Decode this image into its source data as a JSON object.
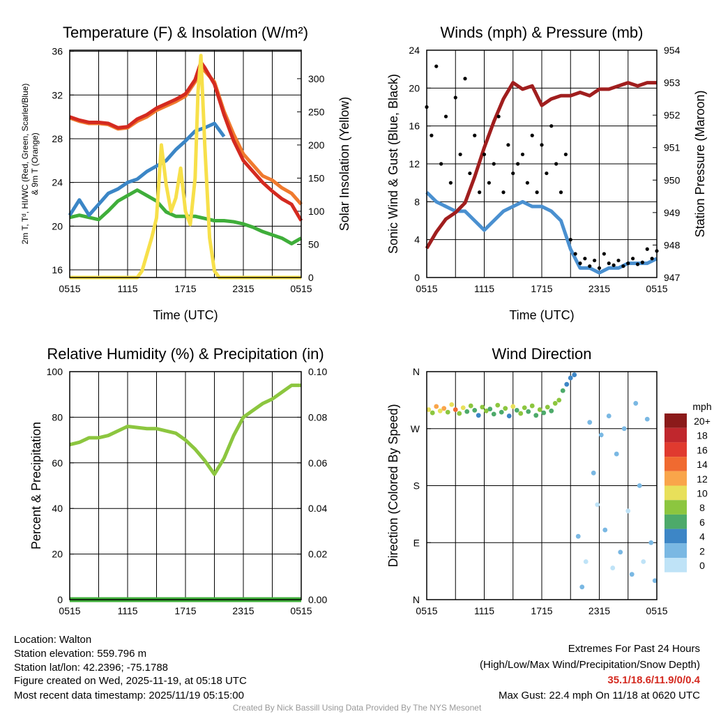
{
  "chart_data": [
    {
      "id": "temp",
      "type": "line",
      "title": "Temperature (F) & Insolation (W/m²)",
      "xlabel": "Time (UTC)",
      "ylabel": "2m T, Tᵈ, HI/WC (Red, Green, Scarlet/Blue)",
      "ylabel2": "& 9m T (Orange)",
      "y2label": "Solar Insolation (Yellow)",
      "xlim": [
        0,
        24
      ],
      "ylim": [
        15.3,
        36.1
      ],
      "y2lim": [
        0,
        343
      ],
      "x_ticks": [
        {
          "v": 0,
          "l": "0515"
        },
        {
          "v": 6,
          "l": "1115"
        },
        {
          "v": 12,
          "l": "1715"
        },
        {
          "v": 18,
          "l": "2315"
        },
        {
          "v": 24,
          "l": "0515"
        }
      ],
      "y_ticks": [
        16,
        20,
        24,
        28,
        32,
        36
      ],
      "y2_ticks": [
        0,
        50,
        100,
        150,
        200,
        250,
        300
      ],
      "series": [
        {
          "name": "9m T",
          "color": "#f07a2e",
          "axis": "left",
          "x": [
            0,
            1,
            2,
            3,
            4,
            5,
            6,
            7,
            8,
            9,
            10,
            11,
            12,
            13,
            13.6,
            14,
            15,
            16,
            17,
            18,
            19,
            20,
            21,
            22,
            23,
            24
          ],
          "y": [
            29.9,
            29.6,
            29.4,
            29.4,
            29.3,
            28.9,
            29.0,
            29.6,
            30.0,
            30.6,
            31.0,
            31.4,
            31.9,
            33.2,
            34.6,
            34.2,
            33.2,
            30.5,
            28.4,
            26.6,
            25.6,
            24.6,
            24.2,
            23.5,
            23.0,
            22.0
          ]
        },
        {
          "name": "2m T",
          "color": "#d42a20",
          "axis": "left",
          "x": [
            0,
            1,
            2,
            3,
            4,
            5,
            6,
            7,
            8,
            9,
            10,
            11,
            12,
            13,
            13.6,
            14,
            15,
            16,
            17,
            18,
            19,
            20,
            21,
            22,
            23,
            24
          ],
          "y": [
            30.0,
            29.7,
            29.5,
            29.5,
            29.4,
            29.0,
            29.1,
            29.8,
            30.2,
            30.8,
            31.2,
            31.6,
            32.1,
            33.4,
            35.0,
            34.5,
            33.0,
            30.2,
            27.8,
            26.0,
            25.0,
            24.0,
            23.2,
            22.5,
            22.0,
            20.5
          ]
        },
        {
          "name": "Td",
          "color": "#3fae3a",
          "axis": "left",
          "x": [
            0,
            1,
            2,
            3,
            4,
            5,
            6,
            7,
            8,
            9,
            10,
            11,
            12,
            13,
            14,
            15,
            16,
            17,
            18,
            19,
            20,
            21,
            22,
            23,
            24
          ],
          "y": [
            20.8,
            21.0,
            20.8,
            20.6,
            21.4,
            22.3,
            22.8,
            23.3,
            22.8,
            22.3,
            21.3,
            20.9,
            20.9,
            20.9,
            20.7,
            20.5,
            20.5,
            20.4,
            20.2,
            19.9,
            19.5,
            19.2,
            18.9,
            18.4,
            18.9
          ]
        },
        {
          "name": "HI/WC",
          "color": "#3b86c6",
          "axis": "left",
          "x": [
            0,
            1,
            2,
            3,
            4,
            5,
            6,
            7,
            8,
            9,
            10,
            11,
            12,
            13,
            14,
            15,
            16
          ],
          "y": [
            21.0,
            22.4,
            21.0,
            22.0,
            23.0,
            23.4,
            24.0,
            24.3,
            25.0,
            25.5,
            26.0,
            27.0,
            27.8,
            28.7,
            29.0,
            29.4,
            28.2
          ]
        },
        {
          "name": "Solar",
          "color": "#f7e04a",
          "axis": "right",
          "x": [
            0,
            7,
            7.5,
            8,
            8.5,
            9,
            9.5,
            10,
            10.5,
            11,
            11.5,
            12,
            12.5,
            13,
            13.3,
            13.6,
            14,
            14.5,
            15,
            15.5,
            24
          ],
          "y": [
            0,
            0,
            10,
            35,
            60,
            90,
            200,
            140,
            100,
            120,
            165,
            100,
            80,
            150,
            280,
            335,
            200,
            60,
            10,
            0,
            0
          ]
        }
      ]
    },
    {
      "id": "wind",
      "type": "line",
      "title": "Winds (mph) & Pressure (mb)",
      "xlabel": "Time (UTC)",
      "ylabel": "Sonic Wind & Gust (Blue, Black)",
      "y2label": "Station Pressure (Maroon)",
      "xlim": [
        0,
        24
      ],
      "ylim": [
        0,
        24
      ],
      "y2lim": [
        947,
        954
      ],
      "x_ticks": [
        {
          "v": 0,
          "l": "0515"
        },
        {
          "v": 6,
          "l": "1115"
        },
        {
          "v": 12,
          "l": "1715"
        },
        {
          "v": 18,
          "l": "2315"
        },
        {
          "v": 24,
          "l": "0515"
        }
      ],
      "y_ticks": [
        0,
        4,
        8,
        12,
        16,
        20,
        24
      ],
      "y2_ticks": [
        947,
        948,
        949,
        950,
        951,
        952,
        953,
        954
      ],
      "series": [
        {
          "name": "Sonic Wind",
          "color": "#4a90d0",
          "axis": "left",
          "x": [
            0,
            1,
            2,
            3,
            4,
            5,
            6,
            7,
            8,
            9,
            10,
            11,
            12,
            13,
            14,
            15,
            16,
            17,
            18,
            19,
            20,
            21,
            22,
            23,
            24
          ],
          "y": [
            9,
            8,
            7.5,
            7,
            7,
            6,
            5,
            6,
            7,
            7.5,
            8,
            7.5,
            7.5,
            7,
            6,
            3,
            1,
            1,
            0.5,
            1,
            1,
            1.5,
            1.5,
            1.5,
            2
          ]
        },
        {
          "name": "Pressure",
          "color": "#a01e1e",
          "axis": "right",
          "x": [
            0,
            1,
            2,
            3,
            4,
            5,
            6,
            7,
            8,
            9,
            10,
            11,
            12,
            13,
            14,
            15,
            16,
            17,
            18,
            19,
            20,
            21,
            22,
            23,
            24
          ],
          "y": [
            947.9,
            948.4,
            948.8,
            949.0,
            949.3,
            950.1,
            951.0,
            951.8,
            952.5,
            953.0,
            952.8,
            952.9,
            952.3,
            952.5,
            952.6,
            952.6,
            952.7,
            952.6,
            952.8,
            952.8,
            952.9,
            953.0,
            952.9,
            953.0,
            953.0
          ]
        },
        {
          "name": "Gust",
          "color": "#000000",
          "axis": "left",
          "type": "scatter",
          "x": [
            0,
            0.5,
            1,
            1.5,
            2,
            2.5,
            3,
            3.5,
            4,
            4.5,
            5,
            5.5,
            6,
            6.5,
            7,
            7.5,
            8,
            8.5,
            9,
            9.5,
            10,
            10.5,
            11,
            11.5,
            12,
            12.5,
            13,
            13.5,
            14,
            14.5,
            15,
            15.5,
            16,
            16.5,
            17,
            17.5,
            18,
            18.5,
            19,
            19.5,
            20,
            20.5,
            21,
            21.5,
            22,
            22.5,
            23,
            23.5,
            24
          ],
          "y": [
            18,
            15,
            22.3,
            12,
            17,
            10,
            19,
            13,
            21,
            11,
            15,
            9,
            13,
            10,
            12,
            17,
            9,
            14,
            11,
            12,
            13,
            10,
            15,
            9,
            14,
            11,
            16,
            12,
            9,
            13,
            4,
            2.5,
            1.5,
            2,
            1.2,
            1.8,
            1,
            2.5,
            1.5,
            1.3,
            1.8,
            1.2,
            1.5,
            2,
            1.4,
            1.6,
            3,
            2,
            2.8
          ]
        }
      ]
    },
    {
      "id": "rh",
      "type": "line",
      "title": "Relative Humidity (%) & Precipitation (in)",
      "ylabel": "Percent & Precipitation",
      "xlim": [
        0,
        24
      ],
      "ylim": [
        0,
        100
      ],
      "y2lim": [
        0,
        0.1
      ],
      "x_ticks": [
        {
          "v": 0,
          "l": "0515"
        },
        {
          "v": 6,
          "l": "1115"
        },
        {
          "v": 12,
          "l": "1715"
        },
        {
          "v": 18,
          "l": "2315"
        },
        {
          "v": 24,
          "l": "0515"
        }
      ],
      "y_ticks": [
        0,
        20,
        40,
        60,
        80,
        100
      ],
      "y2_ticks": [
        "0.00",
        "0.02",
        "0.04",
        "0.06",
        "0.08",
        "0.10"
      ],
      "series": [
        {
          "name": "RH",
          "color": "#8cc63f",
          "axis": "left",
          "x": [
            0,
            1,
            2,
            3,
            4,
            5,
            6,
            7,
            8,
            9,
            10,
            11,
            12,
            13,
            14,
            15,
            16,
            17,
            18,
            19,
            20,
            21,
            22,
            23,
            24
          ],
          "y": [
            68,
            69,
            71,
            71,
            72,
            74,
            76,
            75.5,
            75,
            75,
            74,
            73,
            70,
            66,
            61,
            55,
            62,
            72,
            80,
            83,
            86,
            88,
            91,
            94,
            94
          ]
        },
        {
          "name": "Precipitation",
          "color": "#3fae3a",
          "axis": "right",
          "x": [
            0,
            24
          ],
          "y": [
            0,
            0
          ]
        }
      ]
    },
    {
      "id": "dir",
      "type": "scatter",
      "title": "Wind Direction",
      "ylabel": "Direction (Colored By Speed)",
      "xlim": [
        0,
        24
      ],
      "ylim": [
        0,
        360
      ],
      "x_ticks": [
        {
          "v": 0,
          "l": "0515"
        },
        {
          "v": 6,
          "l": "1115"
        },
        {
          "v": 12,
          "l": "1715"
        },
        {
          "v": 18,
          "l": "2315"
        },
        {
          "v": 24,
          "l": "0515"
        }
      ],
      "y_ticks": [
        {
          "v": 0,
          "l": "N"
        },
        {
          "v": 90,
          "l": "E"
        },
        {
          "v": 180,
          "l": "S"
        },
        {
          "v": 270,
          "l": "W"
        },
        {
          "v": 360,
          "l": "N"
        }
      ],
      "colorbar": {
        "title": "mph",
        "labels": [
          "20+",
          "18",
          "16",
          "14",
          "12",
          "10",
          "8",
          "6",
          "4",
          "2",
          "0"
        ],
        "colors": [
          "#8b1a1a",
          "#c0272d",
          "#e03a2f",
          "#f06a30",
          "#f9a54a",
          "#e8e05a",
          "#8cc63f",
          "#4daa6a",
          "#3d86c6",
          "#7ab8e3",
          "#bfe3f7"
        ]
      },
      "points": [
        [
          0.2,
          300,
          10
        ],
        [
          0.6,
          295,
          8
        ],
        [
          1,
          305,
          11
        ],
        [
          1.4,
          298,
          9
        ],
        [
          1.8,
          302,
          12
        ],
        [
          2.2,
          296,
          7
        ],
        [
          2.6,
          308,
          10
        ],
        [
          3,
          300,
          13
        ],
        [
          3.4,
          294,
          8
        ],
        [
          3.8,
          303,
          9
        ],
        [
          4.2,
          297,
          5
        ],
        [
          4.6,
          306,
          7
        ],
        [
          5,
          299,
          6
        ],
        [
          5.4,
          291,
          4
        ],
        [
          5.8,
          304,
          8
        ],
        [
          6.2,
          298,
          7
        ],
        [
          6.6,
          301,
          6
        ],
        [
          7,
          293,
          5
        ],
        [
          7.4,
          307,
          8
        ],
        [
          7.8,
          296,
          6
        ],
        [
          8.2,
          302,
          7
        ],
        [
          8.6,
          290,
          4
        ],
        [
          9,
          305,
          9
        ],
        [
          9.4,
          299,
          6
        ],
        [
          9.8,
          294,
          7
        ],
        [
          10.2,
          303,
          8
        ],
        [
          10.6,
          297,
          5
        ],
        [
          11,
          306,
          7
        ],
        [
          11.4,
          291,
          6
        ],
        [
          11.8,
          300,
          8
        ],
        [
          12.2,
          295,
          5
        ],
        [
          12.6,
          304,
          7
        ],
        [
          13,
          298,
          6
        ],
        [
          13.4,
          310,
          8
        ],
        [
          13.8,
          315,
          7
        ],
        [
          14.2,
          330,
          6
        ],
        [
          14.6,
          340,
          4
        ],
        [
          15,
          350,
          3
        ],
        [
          15.4,
          355,
          4
        ],
        [
          15.8,
          100,
          1
        ],
        [
          16.2,
          20,
          1
        ],
        [
          16.6,
          60,
          0
        ],
        [
          17,
          280,
          1
        ],
        [
          17.4,
          200,
          1
        ],
        [
          17.8,
          150,
          0
        ],
        [
          18.2,
          260,
          1
        ],
        [
          18.6,
          110,
          1
        ],
        [
          19,
          290,
          1
        ],
        [
          19.4,
          50,
          0
        ],
        [
          19.8,
          230,
          1
        ],
        [
          20.2,
          75,
          1
        ],
        [
          20.6,
          270,
          1
        ],
        [
          21,
          140,
          0
        ],
        [
          21.4,
          40,
          1
        ],
        [
          21.8,
          310,
          1
        ],
        [
          22.2,
          180,
          1
        ],
        [
          22.6,
          60,
          0
        ],
        [
          23,
          285,
          1
        ],
        [
          23.4,
          90,
          1
        ],
        [
          23.8,
          30,
          1
        ]
      ]
    }
  ],
  "footer": {
    "location": "Location: Walton",
    "elevation": "Station elevation: 559.796 m",
    "latlon": "Station lat/lon: 42.2396; -75.1788",
    "created": "Figure created on Wed, 2025-11-19, at 05:18 UTC",
    "recent": "Most recent data timestamp: 2025/11/19 05:15:00",
    "extremes_title": "Extremes For Past 24 Hours",
    "extremes_sub": "(High/Low/Max Wind/Precipitation/Snow Depth)",
    "extremes_values": "35.1/18.6/11.9/0/0.4",
    "max_gust": "Max Gust: 22.4 mph On 11/18 at 0620 UTC",
    "credit": "Created By Nick Bassill Using Data Provided By The NYS Mesonet"
  }
}
